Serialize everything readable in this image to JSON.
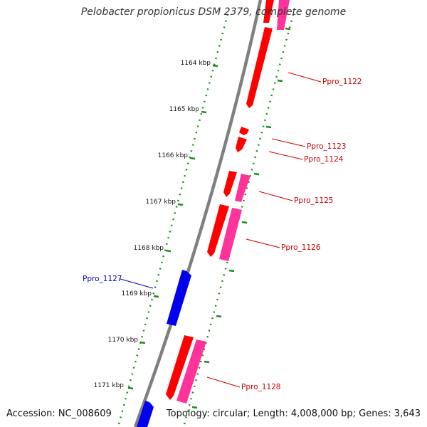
{
  "title": "Pelobacter propionicus DSM 2379, complete genome",
  "accession": "Accession: NC_008609",
  "topology": "Topology: circular; Length: 4,008,000 bp; Genes: 3,643",
  "colors": {
    "backbone": "#808080",
    "dots": "#1a8a1a",
    "forward_gene": "#ff0000",
    "forward_cds": "#ff3399",
    "reverse_gene": "#0000ee",
    "label_forward": "#cc0000",
    "label_reverse": "#0000cc"
  },
  "ticks": [
    {
      "label": "1164 kbp"
    },
    {
      "label": "1165 kbp"
    },
    {
      "label": "1166 kbp"
    },
    {
      "label": "1167 kbp"
    },
    {
      "label": "1168 kbp"
    },
    {
      "label": "1169 kbp"
    },
    {
      "label": "1170 kbp"
    },
    {
      "label": "1171 kbp"
    }
  ],
  "genes": [
    {
      "name": "Ppro_1122",
      "strand": "forward"
    },
    {
      "name": "Ppro_1123",
      "strand": "forward"
    },
    {
      "name": "Ppro_1124",
      "strand": "forward"
    },
    {
      "name": "Ppro_1125",
      "strand": "forward"
    },
    {
      "name": "Ppro_1126",
      "strand": "forward"
    },
    {
      "name": "Ppro_1127",
      "strand": "reverse"
    },
    {
      "name": "Ppro_1128",
      "strand": "forward"
    }
  ]
}
